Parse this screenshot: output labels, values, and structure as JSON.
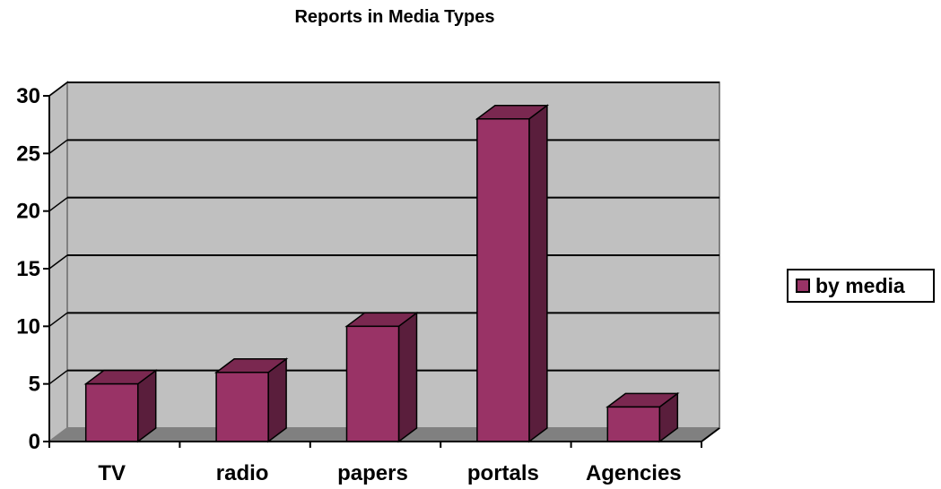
{
  "chart_data": {
    "type": "bar",
    "title": "Reports in Media Types",
    "categories": [
      "TV",
      "radio",
      "papers",
      "portals",
      "Agencies"
    ],
    "series": [
      {
        "name": "by media",
        "values": [
          5,
          6,
          10,
          28,
          3
        ]
      }
    ],
    "ylim": [
      0,
      30
    ],
    "yticks": [
      "0",
      "5",
      "10",
      "15",
      "20",
      "25",
      "30"
    ],
    "grid": true,
    "legend": "right",
    "style": "3d-column"
  },
  "colors": {
    "bar_front": "#993366",
    "bar_side": "#5a1e3c",
    "bar_top": "#7a2850",
    "wall": "#c0c0c0",
    "floor": "#808080"
  }
}
